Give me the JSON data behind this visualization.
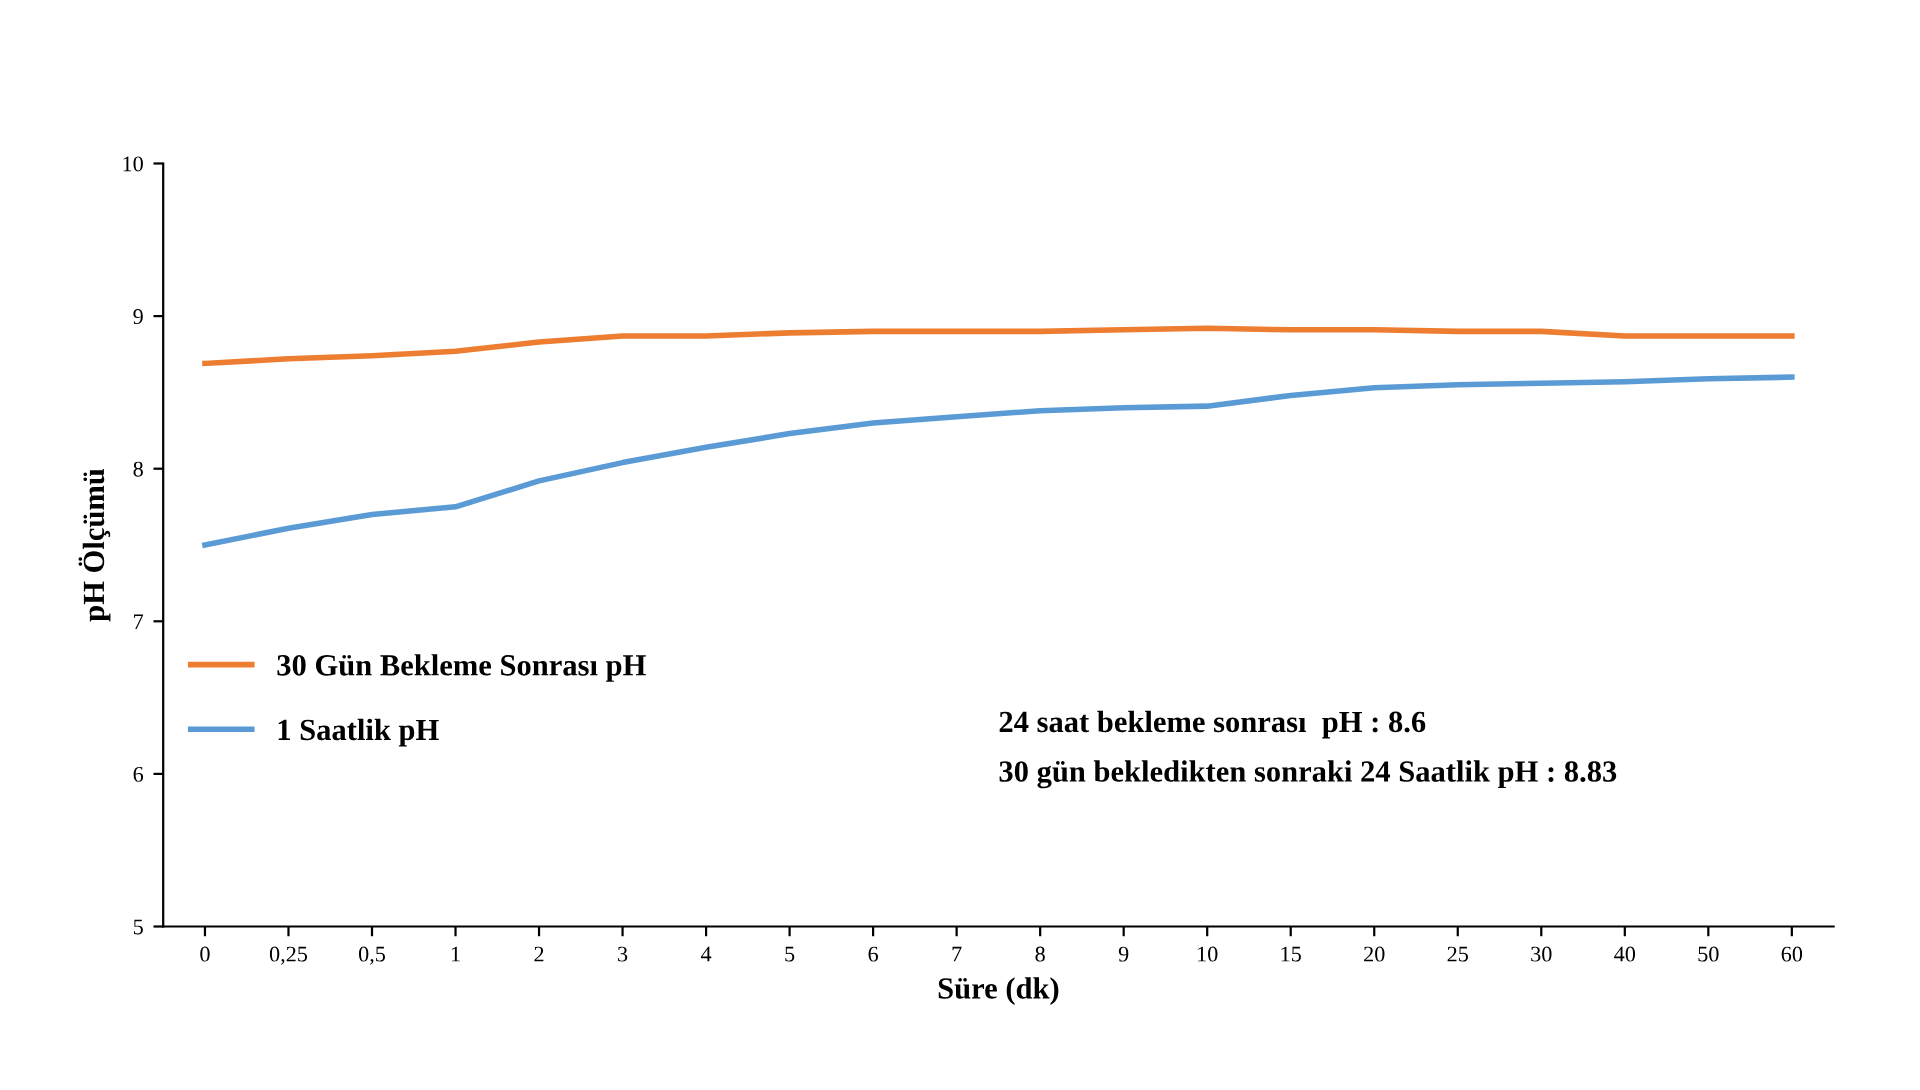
{
  "chart_data": {
    "type": "line",
    "xlabel": "Süre (dk)",
    "ylabel": "pH Ölçümü",
    "categories": [
      "0",
      "0,25",
      "0,5",
      "1",
      "2",
      "3",
      "4",
      "5",
      "6",
      "7",
      "8",
      "9",
      "10",
      "15",
      "20",
      "25",
      "30",
      "40",
      "50",
      "60"
    ],
    "series": [
      {
        "name": "30 Gün Bekleme Sonrası pH",
        "color": "#ed7d31",
        "values": [
          8.69,
          8.72,
          8.74,
          8.77,
          8.83,
          8.87,
          8.87,
          8.89,
          8.9,
          8.9,
          8.9,
          8.91,
          8.92,
          8.91,
          8.91,
          8.9,
          8.9,
          8.87,
          8.87,
          8.87
        ]
      },
      {
        "name": "1 Saatlik pH",
        "color": "#5b9bd5",
        "values": [
          7.5,
          7.61,
          7.7,
          7.75,
          7.92,
          8.04,
          8.14,
          8.23,
          8.3,
          8.34,
          8.38,
          8.4,
          8.41,
          8.48,
          8.53,
          8.55,
          8.56,
          8.57,
          8.59,
          8.6
        ]
      }
    ],
    "ylim": [
      5,
      10
    ],
    "yticks": [
      5,
      6,
      7,
      8,
      9,
      10
    ],
    "annotations": [
      "24 saat bekleme sonrası  pH : 8.6",
      "30 gün bekledikten sonraki 24 Saatlik pH : 8.83"
    ],
    "legend": "bottom left",
    "grid": false,
    "marker": "none",
    "line_style": "solid"
  }
}
